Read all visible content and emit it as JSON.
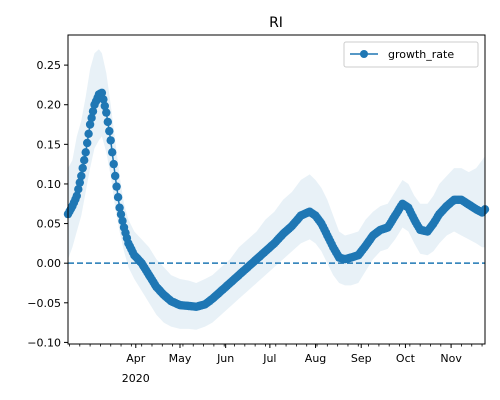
{
  "chart_data": {
    "type": "line",
    "title": "RI",
    "xlabel": "",
    "ylabel": "",
    "x_axis": {
      "kind": "date",
      "range": [
        "2020-02-15",
        "2020-11-24"
      ],
      "major_ticks": [
        {
          "date": "2020-04-01",
          "label": "Apr",
          "sublabel": "2020"
        },
        {
          "date": "2020-05-01",
          "label": "May",
          "sublabel": ""
        },
        {
          "date": "2020-06-01",
          "label": "Jun",
          "sublabel": ""
        },
        {
          "date": "2020-07-01",
          "label": "Jul",
          "sublabel": ""
        },
        {
          "date": "2020-08-01",
          "label": "Aug",
          "sublabel": ""
        },
        {
          "date": "2020-09-01",
          "label": "Sep",
          "sublabel": ""
        },
        {
          "date": "2020-10-01",
          "label": "Oct",
          "sublabel": ""
        },
        {
          "date": "2020-11-01",
          "label": "Nov",
          "sublabel": ""
        }
      ]
    },
    "y_axis": {
      "range": [
        -0.102,
        0.288
      ],
      "ticks": [
        -0.1,
        -0.05,
        0.0,
        0.05,
        0.1,
        0.15,
        0.2,
        0.25
      ],
      "tick_labels": [
        "−0.10",
        "−0.05",
        "0.00",
        "0.05",
        "0.10",
        "0.15",
        "0.20",
        "0.25"
      ]
    },
    "grid": false,
    "legend": {
      "position": "top-right",
      "entries": [
        "growth_rate"
      ]
    },
    "reference_line": {
      "y": 0.0,
      "style": "dashed",
      "color": "#1f77b4"
    },
    "series": [
      {
        "name": "growth_rate",
        "color": "#1f77b4",
        "marker": "circle",
        "band_color": "#1f77b4",
        "points": [
          {
            "date": "2020-02-15",
            "y": 0.062,
            "lo": 0.005,
            "hi": 0.12
          },
          {
            "date": "2020-02-18",
            "y": 0.072,
            "lo": 0.02,
            "hi": 0.13
          },
          {
            "date": "2020-02-21",
            "y": 0.085,
            "lo": 0.04,
            "hi": 0.16
          },
          {
            "date": "2020-02-24",
            "y": 0.11,
            "lo": 0.06,
            "hi": 0.18
          },
          {
            "date": "2020-02-27",
            "y": 0.14,
            "lo": 0.09,
            "hi": 0.21
          },
          {
            "date": "2020-03-01",
            "y": 0.175,
            "lo": 0.12,
            "hi": 0.245
          },
          {
            "date": "2020-03-04",
            "y": 0.2,
            "lo": 0.145,
            "hi": 0.265
          },
          {
            "date": "2020-03-07",
            "y": 0.213,
            "lo": 0.155,
            "hi": 0.27
          },
          {
            "date": "2020-03-09",
            "y": 0.215,
            "lo": 0.16,
            "hi": 0.265
          },
          {
            "date": "2020-03-12",
            "y": 0.19,
            "lo": 0.14,
            "hi": 0.24
          },
          {
            "date": "2020-03-15",
            "y": 0.155,
            "lo": 0.11,
            "hi": 0.2
          },
          {
            "date": "2020-03-18",
            "y": 0.11,
            "lo": 0.07,
            "hi": 0.155
          },
          {
            "date": "2020-03-21",
            "y": 0.07,
            "lo": 0.04,
            "hi": 0.11
          },
          {
            "date": "2020-03-24",
            "y": 0.045,
            "lo": 0.015,
            "hi": 0.075
          },
          {
            "date": "2020-03-27",
            "y": 0.025,
            "lo": -0.005,
            "hi": 0.055
          },
          {
            "date": "2020-03-31",
            "y": 0.01,
            "lo": -0.02,
            "hi": 0.04
          },
          {
            "date": "2020-04-05",
            "y": 0.0,
            "lo": -0.035,
            "hi": 0.03
          },
          {
            "date": "2020-04-10",
            "y": -0.015,
            "lo": -0.05,
            "hi": 0.02
          },
          {
            "date": "2020-04-15",
            "y": -0.03,
            "lo": -0.065,
            "hi": 0.005
          },
          {
            "date": "2020-04-20",
            "y": -0.04,
            "lo": -0.075,
            "hi": -0.005
          },
          {
            "date": "2020-04-25",
            "y": -0.048,
            "lo": -0.08,
            "hi": -0.015
          },
          {
            "date": "2020-05-01",
            "y": -0.053,
            "lo": -0.083,
            "hi": -0.02
          },
          {
            "date": "2020-05-07",
            "y": -0.054,
            "lo": -0.083,
            "hi": -0.022
          },
          {
            "date": "2020-05-12",
            "y": -0.055,
            "lo": -0.084,
            "hi": -0.025
          },
          {
            "date": "2020-05-18",
            "y": -0.052,
            "lo": -0.08,
            "hi": -0.02
          },
          {
            "date": "2020-05-23",
            "y": -0.045,
            "lo": -0.075,
            "hi": -0.015
          },
          {
            "date": "2020-05-29",
            "y": -0.035,
            "lo": -0.065,
            "hi": -0.005
          },
          {
            "date": "2020-06-04",
            "y": -0.025,
            "lo": -0.055,
            "hi": 0.005
          },
          {
            "date": "2020-06-10",
            "y": -0.015,
            "lo": -0.045,
            "hi": 0.02
          },
          {
            "date": "2020-06-16",
            "y": -0.005,
            "lo": -0.035,
            "hi": 0.03
          },
          {
            "date": "2020-06-22",
            "y": 0.005,
            "lo": -0.025,
            "hi": 0.04
          },
          {
            "date": "2020-06-28",
            "y": 0.015,
            "lo": -0.015,
            "hi": 0.055
          },
          {
            "date": "2020-07-04",
            "y": 0.025,
            "lo": -0.005,
            "hi": 0.065
          },
          {
            "date": "2020-07-10",
            "y": 0.037,
            "lo": 0.005,
            "hi": 0.08
          },
          {
            "date": "2020-07-16",
            "y": 0.047,
            "lo": 0.015,
            "hi": 0.09
          },
          {
            "date": "2020-07-22",
            "y": 0.06,
            "lo": 0.025,
            "hi": 0.105
          },
          {
            "date": "2020-07-28",
            "y": 0.065,
            "lo": 0.03,
            "hi": 0.112
          },
          {
            "date": "2020-08-01",
            "y": 0.06,
            "lo": 0.025,
            "hi": 0.105
          },
          {
            "date": "2020-08-05",
            "y": 0.05,
            "lo": 0.015,
            "hi": 0.095
          },
          {
            "date": "2020-08-09",
            "y": 0.035,
            "lo": 0.0,
            "hi": 0.08
          },
          {
            "date": "2020-08-13",
            "y": 0.02,
            "lo": -0.015,
            "hi": 0.06
          },
          {
            "date": "2020-08-17",
            "y": 0.007,
            "lo": -0.025,
            "hi": 0.04
          },
          {
            "date": "2020-08-21",
            "y": 0.005,
            "lo": -0.028,
            "hi": 0.035
          },
          {
            "date": "2020-08-25",
            "y": 0.007,
            "lo": -0.028,
            "hi": 0.037
          },
          {
            "date": "2020-08-30",
            "y": 0.01,
            "lo": -0.025,
            "hi": 0.04
          },
          {
            "date": "2020-09-04",
            "y": 0.022,
            "lo": -0.01,
            "hi": 0.055
          },
          {
            "date": "2020-09-09",
            "y": 0.035,
            "lo": 0.005,
            "hi": 0.065
          },
          {
            "date": "2020-09-14",
            "y": 0.042,
            "lo": 0.015,
            "hi": 0.072
          },
          {
            "date": "2020-09-19",
            "y": 0.045,
            "lo": 0.018,
            "hi": 0.075
          },
          {
            "date": "2020-09-24",
            "y": 0.06,
            "lo": 0.03,
            "hi": 0.09
          },
          {
            "date": "2020-09-29",
            "y": 0.075,
            "lo": 0.045,
            "hi": 0.105
          },
          {
            "date": "2020-10-03",
            "y": 0.07,
            "lo": 0.04,
            "hi": 0.1
          },
          {
            "date": "2020-10-07",
            "y": 0.055,
            "lo": 0.025,
            "hi": 0.085
          },
          {
            "date": "2020-10-11",
            "y": 0.042,
            "lo": 0.012,
            "hi": 0.075
          },
          {
            "date": "2020-10-16",
            "y": 0.04,
            "lo": 0.01,
            "hi": 0.075
          },
          {
            "date": "2020-10-20",
            "y": 0.05,
            "lo": 0.015,
            "hi": 0.085
          },
          {
            "date": "2020-10-24",
            "y": 0.062,
            "lo": 0.025,
            "hi": 0.1
          },
          {
            "date": "2020-10-29",
            "y": 0.072,
            "lo": 0.035,
            "hi": 0.11
          },
          {
            "date": "2020-11-03",
            "y": 0.08,
            "lo": 0.04,
            "hi": 0.12
          },
          {
            "date": "2020-11-08",
            "y": 0.08,
            "lo": 0.035,
            "hi": 0.12
          },
          {
            "date": "2020-11-13",
            "y": 0.074,
            "lo": 0.03,
            "hi": 0.115
          },
          {
            "date": "2020-11-18",
            "y": 0.068,
            "lo": 0.025,
            "hi": 0.12
          },
          {
            "date": "2020-11-22",
            "y": 0.064,
            "lo": 0.02,
            "hi": 0.13
          },
          {
            "date": "2020-11-24",
            "y": 0.068,
            "lo": 0.02,
            "hi": 0.135
          }
        ]
      }
    ]
  }
}
